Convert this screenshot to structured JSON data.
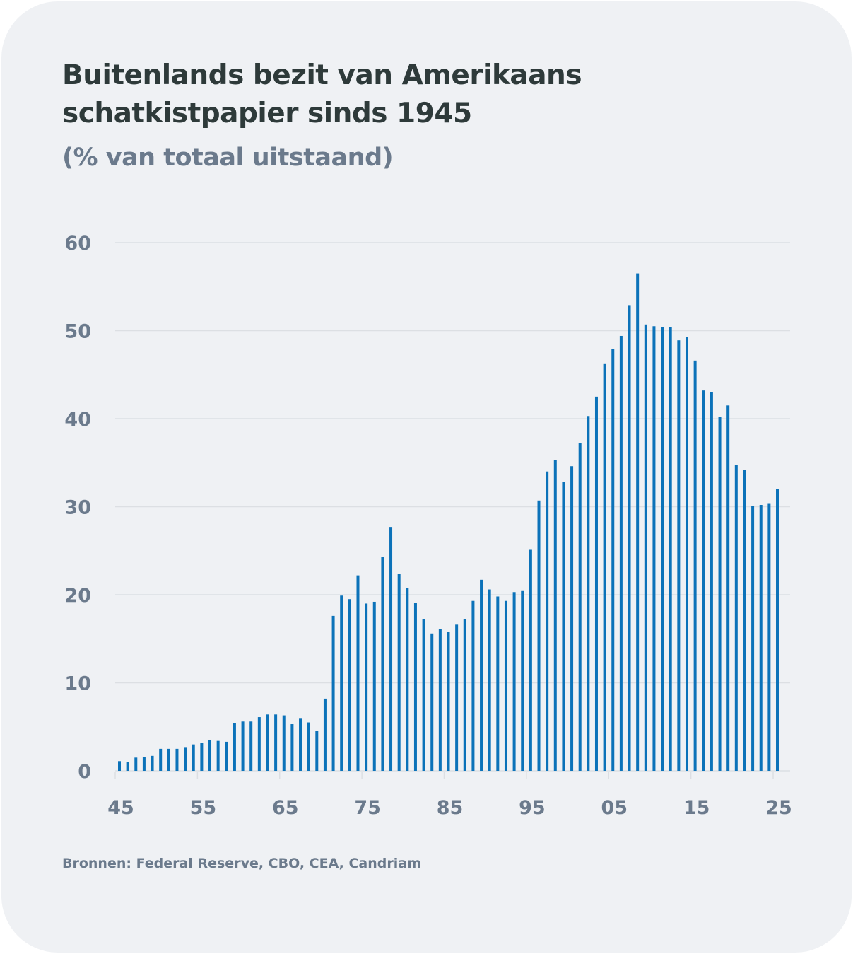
{
  "title": "Buitenlands bezit van Amerikaans schatkistpapier sinds 1945",
  "subtitle": "(% van totaal uitstaand)",
  "source": "Bronnen: Federal Reserve, CBO, CEA, Candriam",
  "colors": {
    "bar": "#0b72b9",
    "grid": "#dcdfe3",
    "axis_text": "#6b7a8c",
    "title": "#2e3a3a",
    "background": "#eff1f4"
  },
  "chart_data": {
    "type": "bar",
    "title": "Buitenlands bezit van Amerikaans schatkistpapier sinds 1945",
    "subtitle": "(% van totaal uitstaand)",
    "xlabel": "",
    "ylabel": "",
    "ylim": [
      0,
      60
    ],
    "yticks": [
      0,
      10,
      20,
      30,
      40,
      50,
      60
    ],
    "ytick_labels": [
      "0",
      "10",
      "20",
      "30",
      "40",
      "50",
      "60"
    ],
    "xticks": [
      1945,
      1955,
      1965,
      1975,
      1985,
      1995,
      2005,
      2015,
      2025
    ],
    "xtick_labels": [
      "45",
      "55",
      "65",
      "75",
      "85",
      "95",
      "05",
      "15",
      "25"
    ],
    "grid": true,
    "legend": "none",
    "categories": [
      1945,
      1946,
      1947,
      1948,
      1949,
      1950,
      1951,
      1952,
      1953,
      1954,
      1955,
      1956,
      1957,
      1958,
      1959,
      1960,
      1961,
      1962,
      1963,
      1964,
      1965,
      1966,
      1967,
      1968,
      1969,
      1970,
      1971,
      1972,
      1973,
      1974,
      1975,
      1976,
      1977,
      1978,
      1979,
      1980,
      1981,
      1982,
      1983,
      1984,
      1985,
      1986,
      1987,
      1988,
      1989,
      1990,
      1991,
      1992,
      1993,
      1994,
      1995,
      1996,
      1997,
      1998,
      1999,
      2000,
      2001,
      2002,
      2003,
      2004,
      2005,
      2006,
      2007,
      2008,
      2009,
      2010,
      2011,
      2012,
      2013,
      2014,
      2015,
      2016,
      2017,
      2018,
      2019,
      2020,
      2021,
      2022,
      2023,
      2024,
      2025
    ],
    "values": [
      1.1,
      1.0,
      1.5,
      1.6,
      1.7,
      2.5,
      2.5,
      2.5,
      2.7,
      3.0,
      3.2,
      3.5,
      3.4,
      3.3,
      5.4,
      5.6,
      5.6,
      6.1,
      6.4,
      6.4,
      6.3,
      5.3,
      6.0,
      5.5,
      4.5,
      8.2,
      17.6,
      19.9,
      19.5,
      22.2,
      19.0,
      19.2,
      24.3,
      27.7,
      22.4,
      20.8,
      19.1,
      17.2,
      15.6,
      16.1,
      15.8,
      16.6,
      17.2,
      19.3,
      21.7,
      20.6,
      19.8,
      19.3,
      20.3,
      20.5,
      25.1,
      30.7,
      34.0,
      35.3,
      32.8,
      34.6,
      37.2,
      40.3,
      42.5,
      46.2,
      47.9,
      49.4,
      52.9,
      56.5,
      50.7,
      50.5,
      50.4,
      50.4,
      48.9,
      49.3,
      46.6,
      43.2,
      43.0,
      40.2,
      41.5,
      34.7,
      34.2,
      30.1,
      30.2,
      30.4,
      32.0
    ]
  }
}
